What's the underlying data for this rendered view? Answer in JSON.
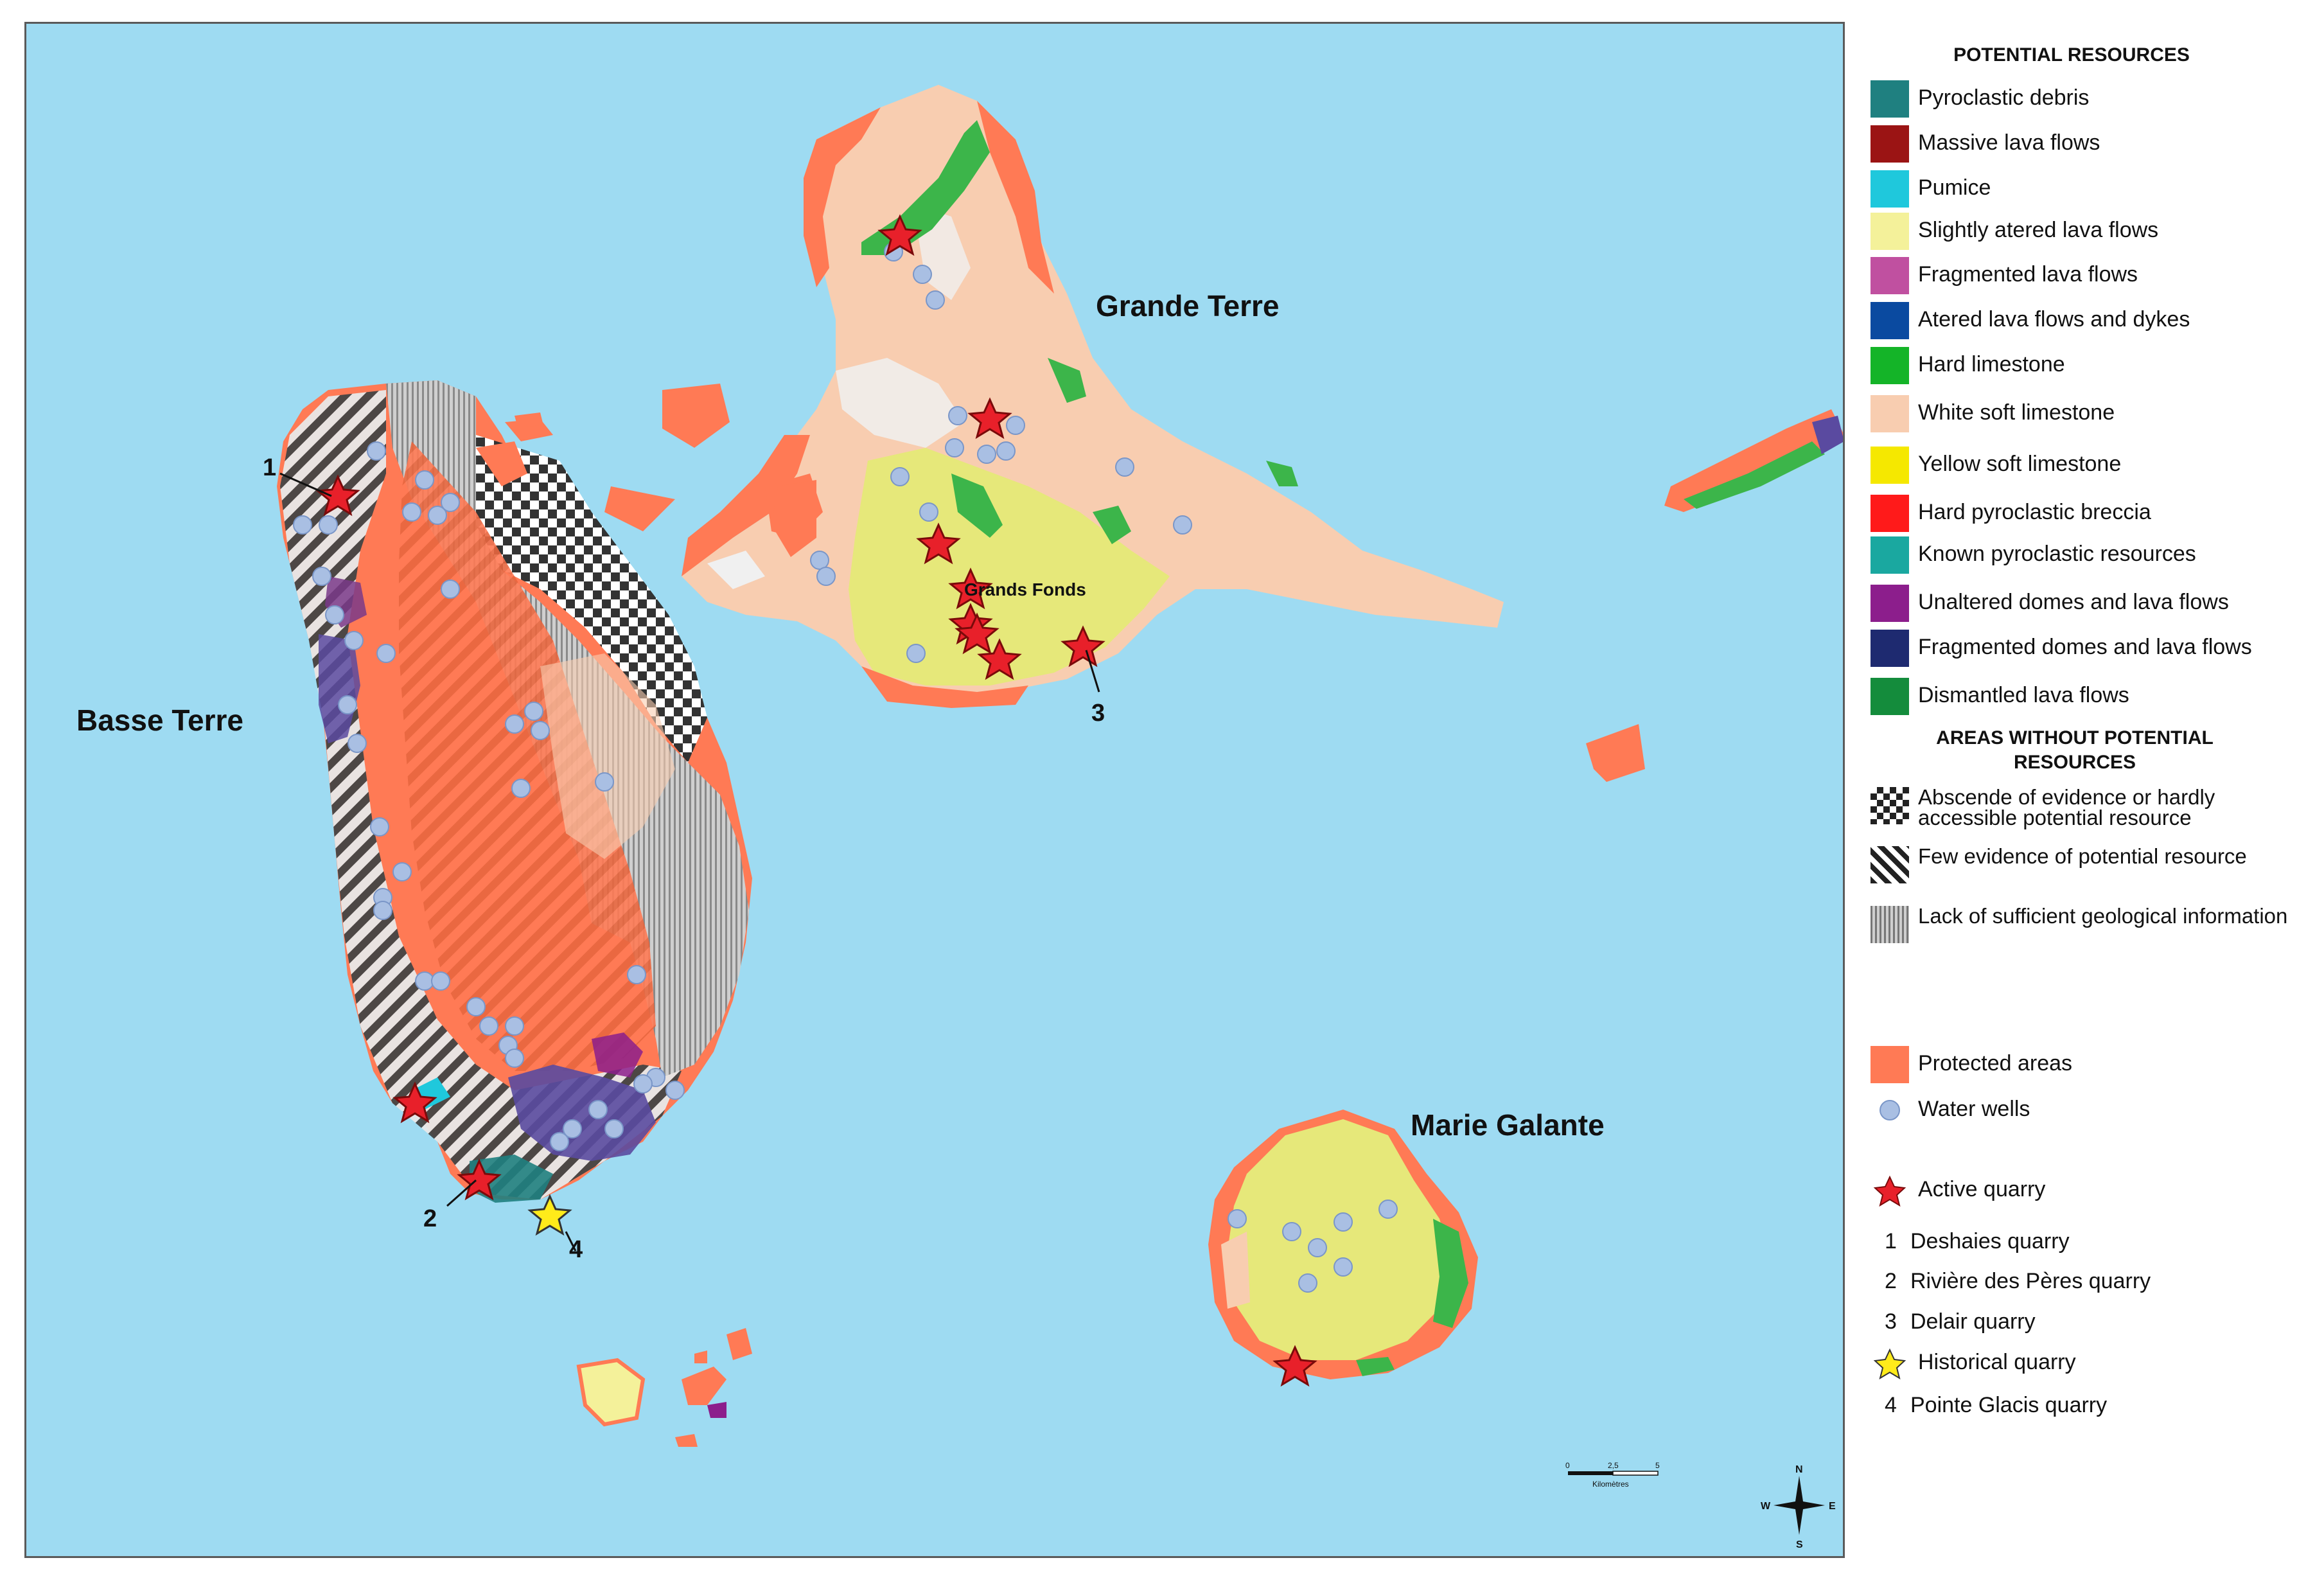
{
  "map": {
    "island_labels": {
      "basse_terre": "Basse Terre",
      "grande_terre": "Grande Terre",
      "marie_galante": "Marie Galante",
      "grands_fonds": "Grands Fonds"
    },
    "callouts": [
      "1",
      "2",
      "3",
      "4"
    ],
    "scale_bar": {
      "ticks": [
        "0",
        "2,5",
        "5"
      ],
      "unit": "Kilomètres"
    },
    "compass": {
      "n": "N",
      "s": "S",
      "e": "E",
      "w": "W"
    },
    "colors": {
      "sea": "#9edbf2",
      "protected": "#ff7a55",
      "white_soft_limestone": "#f8cdb0",
      "yellow_soft_limestone": "#e6e87a",
      "hard_limestone": "#3cb54a",
      "water_well": "#a9bfe3",
      "active_quarry": "#e8202a",
      "historical_quarry": "#ffeb1a"
    }
  },
  "legend": {
    "potential_title": "POTENTIAL RESOURCES",
    "potential_items": [
      {
        "label": "Pyroclastic debris",
        "color": "#1f8080"
      },
      {
        "label": "Massive lava flows",
        "color": "#9b1414"
      },
      {
        "label": "Pumice",
        "color": "#1fc8dc"
      },
      {
        "label": "Slightly atered lava flows",
        "color": "#f4f19a"
      },
      {
        "label": "Fragmented lava flows",
        "color": "#c050a0"
      },
      {
        "label": "Atered lava flows and dykes",
        "color": "#0a4aa0"
      },
      {
        "label": "Hard limestone",
        "color": "#14b428"
      },
      {
        "label": "White soft limestone",
        "color": "#f8cdb0"
      },
      {
        "label": "Yellow soft limestone",
        "color": "#f5e800"
      },
      {
        "label": "Hard pyroclastic breccia",
        "color": "#ff1a1a"
      },
      {
        "label": "Known pyroclastic resources",
        "color": "#1aa8a0"
      },
      {
        "label": "Unaltered domes and lava flows",
        "color": "#8c1e8c"
      },
      {
        "label": "Fragmented domes and lava flows",
        "color": "#1e2a70"
      },
      {
        "label": "Dismantled lava flows",
        "color": "#148c3c"
      }
    ],
    "areas_title": "AREAS WITHOUT POTENTIAL RESOURCES",
    "areas_items": [
      {
        "label": "Abscende of evidence or hardly accessible potential resource",
        "pattern": "checker"
      },
      {
        "label": "Few evidence of potential resource",
        "pattern": "diagonal"
      },
      {
        "label": "Lack of sufficient geological information",
        "pattern": "vertical"
      }
    ],
    "protected_label": "Protected areas",
    "water_wells_label": "Water wells",
    "active_quarry_label": "Active quarry",
    "active_quarries": [
      {
        "num": "1",
        "name": "Deshaies quarry"
      },
      {
        "num": "2",
        "name": "Rivière des Pères quarry"
      },
      {
        "num": "3",
        "name": "Delair quarry"
      }
    ],
    "historical_quarry_label": "Historical quarry",
    "historical_quarries": [
      {
        "num": "4",
        "name": "Pointe Glacis quarry"
      }
    ]
  }
}
